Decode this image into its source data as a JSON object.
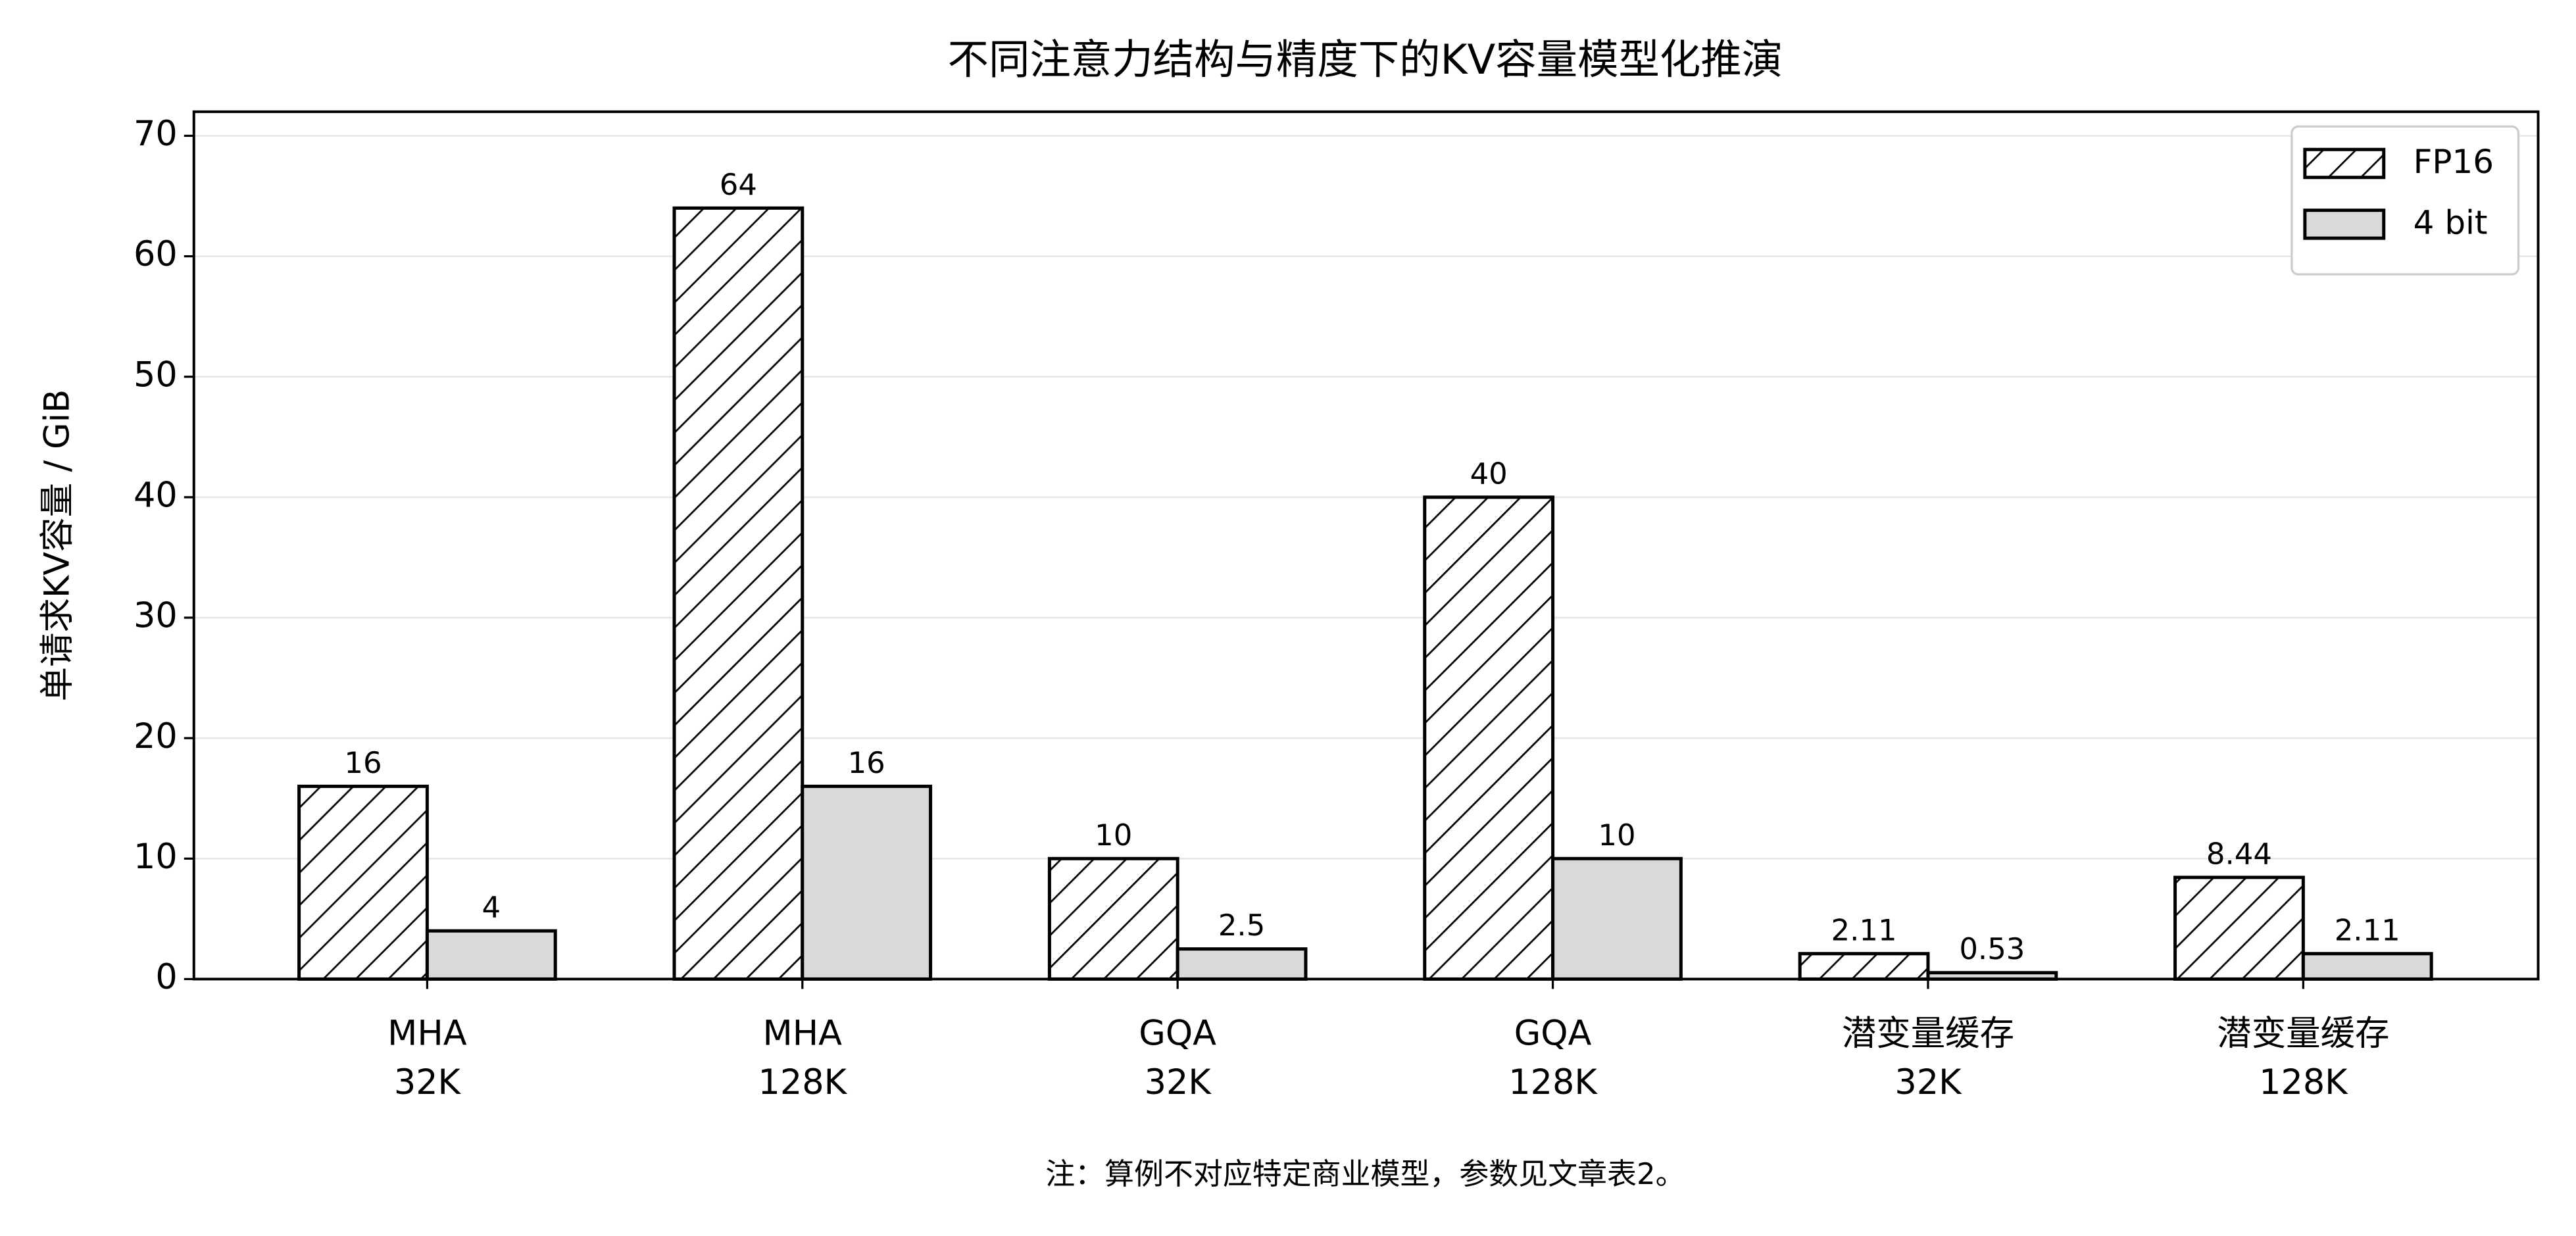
{
  "chart_data": {
    "type": "bar",
    "title": "不同注意力结构与精度下的KV容量模型化推演",
    "ylabel": "单请求KV容量 / GiB",
    "note": "注：算例不对应特定商业模型，参数见文章表2。",
    "categories": [
      "MHA\n32K",
      "MHA\n128K",
      "GQA\n32K",
      "GQA\n128K",
      "潜变量缓存\n32K",
      "潜变量缓存\n128K"
    ],
    "series": [
      {
        "name": "FP16",
        "color": "#ffffff",
        "hatch": true,
        "values": [
          16,
          64,
          10,
          40,
          2.11,
          8.44
        ]
      },
      {
        "name": "4 bit",
        "color": "#d9d9d9",
        "hatch": false,
        "values": [
          4,
          16,
          2.5,
          10,
          0.53,
          2.11
        ]
      }
    ],
    "ylim": [
      0,
      72
    ],
    "yticks": [
      0,
      10,
      20,
      30,
      40,
      50,
      60,
      70
    ],
    "grid": true,
    "legend": "upper right"
  }
}
